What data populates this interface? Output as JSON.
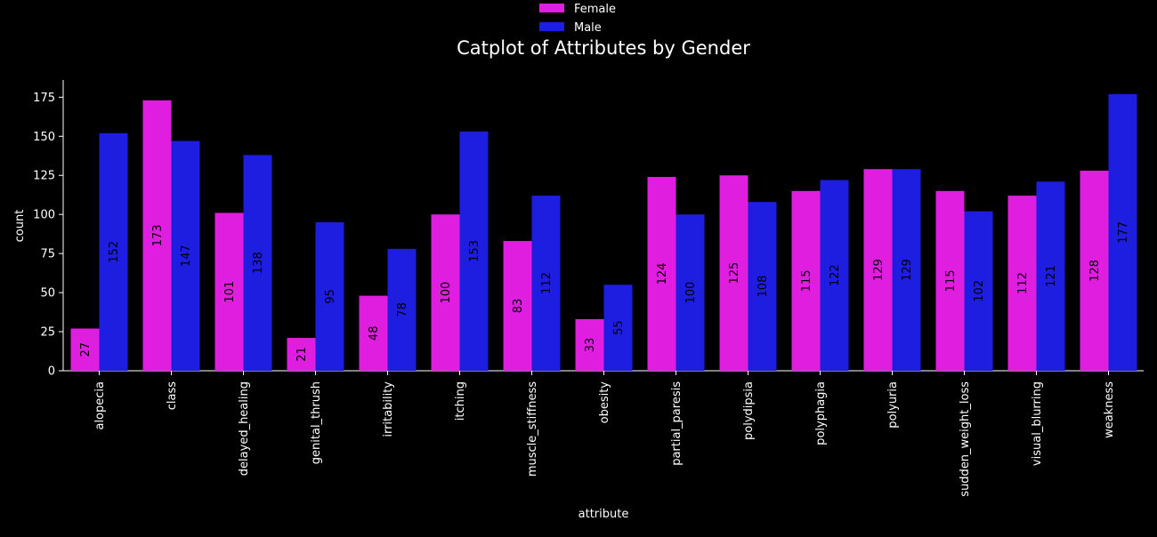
{
  "chart_data": {
    "type": "bar",
    "title": "Catplot of Attributes by Gender",
    "xlabel": "attribute",
    "ylabel": "count",
    "ylim": [
      0,
      186
    ],
    "yticks": [
      0,
      25,
      50,
      75,
      100,
      125,
      150,
      175
    ],
    "grid": false,
    "legend_position": "top-center",
    "categories": [
      "alopecia",
      "class",
      "delayed_healing",
      "genital_thrush",
      "irritability",
      "itching",
      "muscle_stiffness",
      "obesity",
      "partial_paresis",
      "polydipsia",
      "polyphagia",
      "polyuria",
      "sudden_weight_loss",
      "visual_blurring",
      "weakness"
    ],
    "series": [
      {
        "name": "Female",
        "color": "#e01ee0",
        "values": [
          27,
          173,
          101,
          21,
          48,
          100,
          83,
          33,
          124,
          125,
          115,
          129,
          115,
          112,
          128
        ]
      },
      {
        "name": "Male",
        "color": "#1e1ee0",
        "values": [
          152,
          147,
          138,
          95,
          78,
          153,
          112,
          55,
          100,
          108,
          122,
          129,
          102,
          121,
          177
        ]
      }
    ],
    "colors": {
      "background": "#000000",
      "foreground": "#ffffff",
      "label": "#000000"
    }
  }
}
